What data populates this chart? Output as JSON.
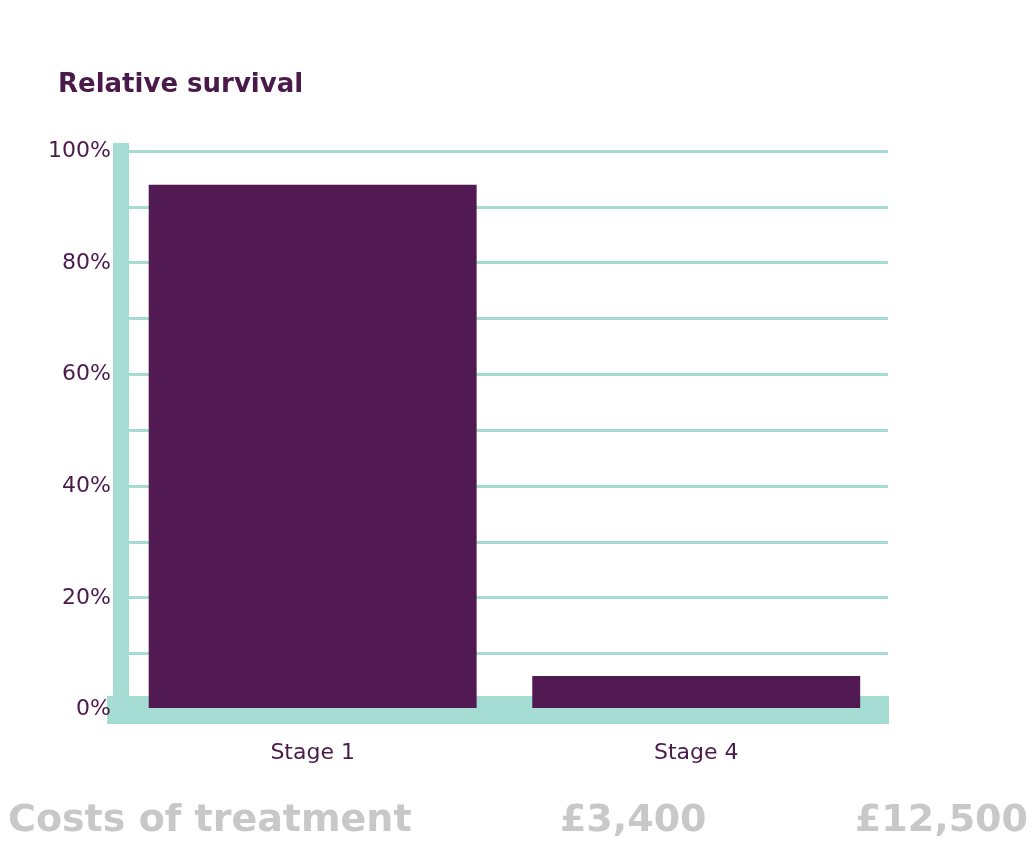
{
  "chart_data": {
    "type": "bar",
    "ylabel": "Relative survival",
    "categories": [
      "Stage 1",
      "Stage 4"
    ],
    "values": [
      94,
      6
    ],
    "color": "#521a52",
    "ylim": [
      0,
      100
    ],
    "yticks": [
      {
        "value": 0,
        "label": "0%"
      },
      {
        "value": 10,
        "label": null
      },
      {
        "value": 20,
        "label": "20%"
      },
      {
        "value": 30,
        "label": null
      },
      {
        "value": 40,
        "label": "40%"
      },
      {
        "value": 50,
        "label": null
      },
      {
        "value": 60,
        "label": "60%"
      },
      {
        "value": 70,
        "label": null
      },
      {
        "value": 80,
        "label": "80%"
      },
      {
        "value": 90,
        "label": null
      },
      {
        "value": 100,
        "label": "100%"
      }
    ],
    "grid": "y",
    "annotations": [
      "Costs of treatment",
      "£3,400",
      "£12,500"
    ]
  }
}
